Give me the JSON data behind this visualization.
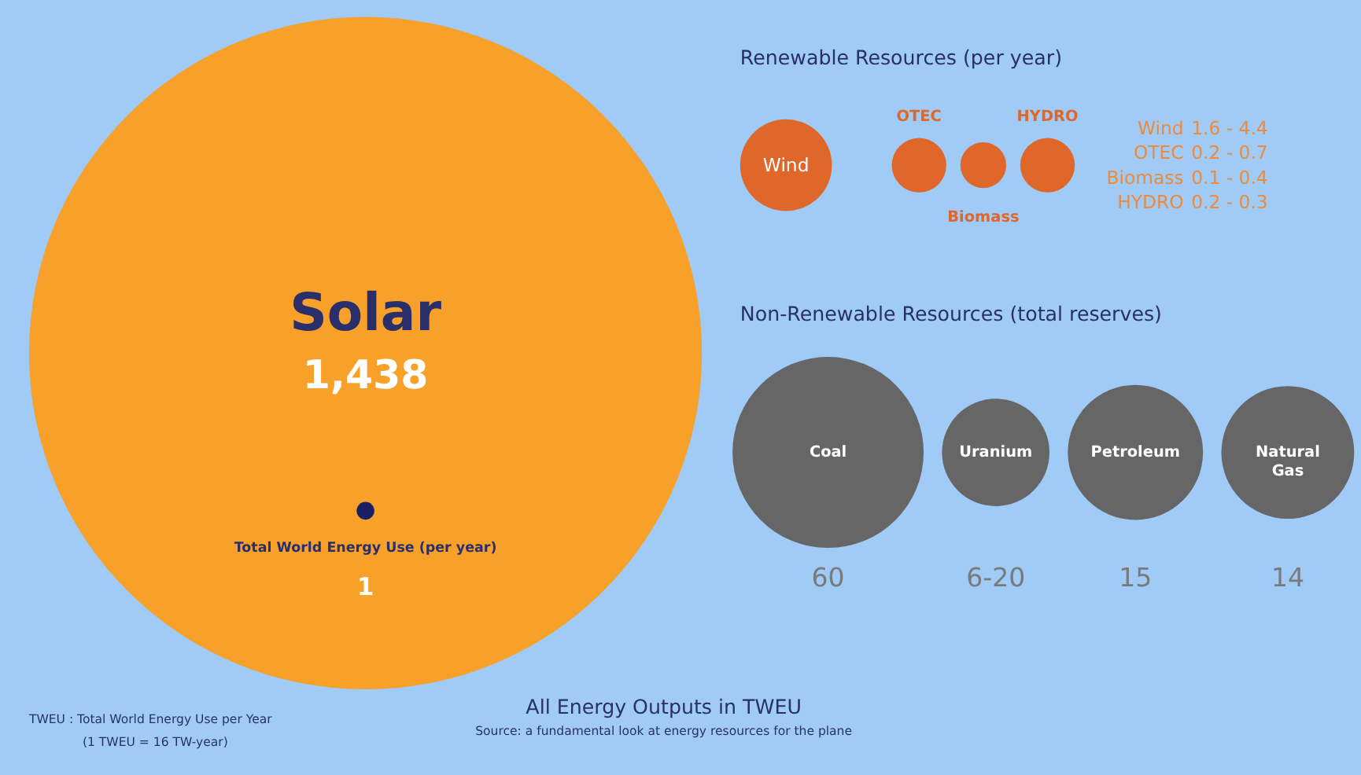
{
  "chart_data": [
    {
      "type": "other",
      "categories": [
        "Solar",
        "Total World Energy Use (per year)"
      ],
      "values": [
        1438,
        1
      ],
      "value_labels": [
        "1,438",
        "1"
      ],
      "colors": [
        "#f7a02a",
        "#1c1f66"
      ]
    },
    {
      "type": "other",
      "title": "Renewable Resources (per year)",
      "categories": [
        "Wind",
        "OTEC",
        "Biomass",
        "HYDRO"
      ],
      "values": [
        1.6,
        0.2,
        0.1,
        0.2
      ],
      "value_labels": [
        "1.6 - 4.4",
        "0.2 - 0.7",
        "0.1 - 0.4",
        "0.2 - 0.3"
      ],
      "colors": [
        "#e0672a",
        "#e0672a",
        "#e0672a",
        "#e0672a"
      ]
    },
    {
      "type": "other",
      "title": "Non-Renewable Resources (total reserves)",
      "categories": [
        "Coal",
        "Uranium",
        "Petroleum",
        "Natural Gas"
      ],
      "values": [
        60,
        6,
        15,
        14
      ],
      "value_labels": [
        "60",
        "6-20",
        "15",
        "14"
      ],
      "colors": [
        "#666666",
        "#666666",
        "#666666",
        "#666666"
      ]
    },
    {
      "type": "other",
      "title": "All Energy Outputs in TWEU",
      "annotations": [
        "Source: a fundamental look at energy resources for the plane",
        "TWEU : Total World Energy Use per Year",
        "(1 TWEU = 16 TW-year)"
      ]
    }
  ]
}
